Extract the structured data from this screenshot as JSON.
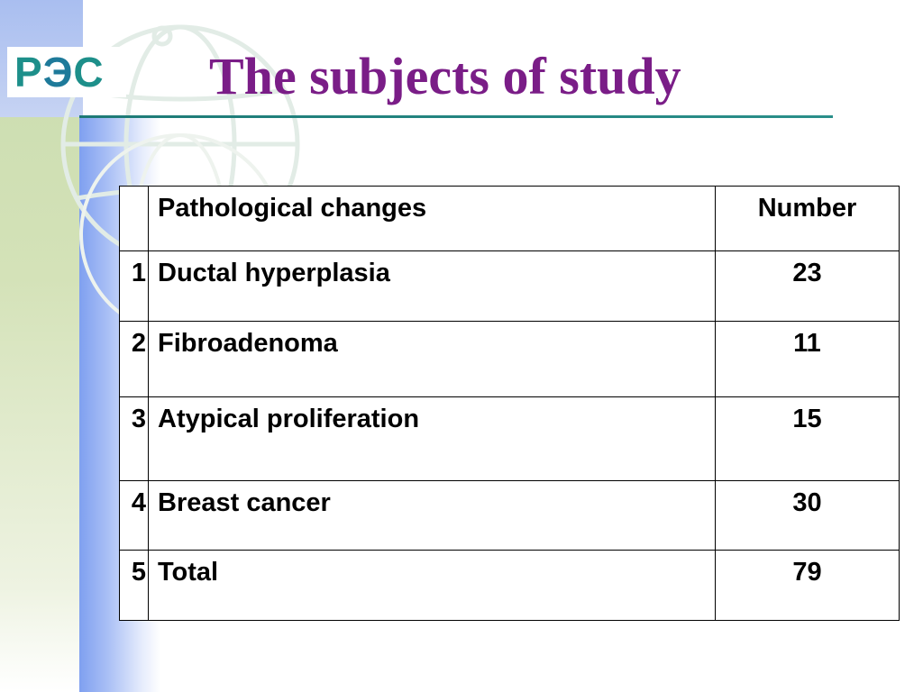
{
  "slide": {
    "title": "The subjects of study",
    "logo_text": {
      "p1": "Р",
      "p2": "Э",
      "p3": "С"
    },
    "accent_color": "#7a1d87",
    "logo_color": "#1d8f8a"
  },
  "table": {
    "headers": {
      "index": "",
      "change": "Pathological changes",
      "number": "Number"
    },
    "rows": [
      {
        "index": "1",
        "change": "Ductal hyperplasia",
        "number": "23"
      },
      {
        "index": "2",
        "change": "Fibroadenoma",
        "number": "11"
      },
      {
        "index": "3",
        "change": "Atypical proliferation",
        "number": "15"
      },
      {
        "index": "4",
        "change": "Breast cancer",
        "number": "30"
      },
      {
        "index": "5",
        "change": "Total",
        "number": "79"
      }
    ]
  }
}
